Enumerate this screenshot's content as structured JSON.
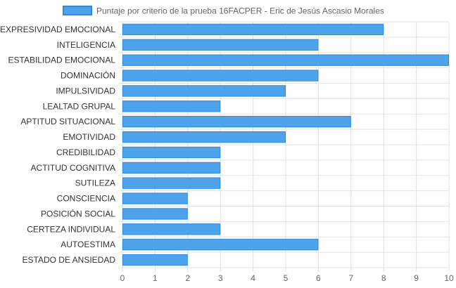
{
  "chart_data": {
    "type": "bar",
    "orientation": "horizontal",
    "categories": [
      "EXPRESIVIDAD EMOCIONAL",
      "INTELIGENCIA",
      "ESTABILIDAD EMOCIONAL",
      "DOMINACIÓN",
      "IMPULSIVIDAD",
      "LEALTAD GRUPAL",
      "APTITUD SITUACIONAL",
      "EMOTIVIDAD",
      "CREDIBILIDAD",
      "ACTITUD COGNITIVA",
      "SUTILEZA",
      "CONSCIENCIA",
      "POSICIÓN SOCIAL",
      "CERTEZA INDIVIDUAL",
      "AUTOESTIMA",
      "ESTADO DE ANSIEDAD"
    ],
    "series": [
      {
        "name": "Puntaje por criterio de la prueba 16FACPER - Eric de Jesús Ascasio Morales",
        "values": [
          8,
          6,
          10,
          6,
          5,
          3,
          7,
          5,
          3,
          3,
          3,
          2,
          2,
          3,
          6,
          2
        ]
      }
    ],
    "x_ticks": [
      "0",
      "1",
      "2",
      "3",
      "4",
      "5",
      "6",
      "7",
      "8",
      "9",
      "10"
    ],
    "xlim": [
      0,
      10
    ],
    "grid": true,
    "legend": "top-center",
    "colors": {
      "bar_fill": "#4da3ec",
      "bar_stroke": "#2a8ae6",
      "grid": "#e2e2e2"
    }
  }
}
